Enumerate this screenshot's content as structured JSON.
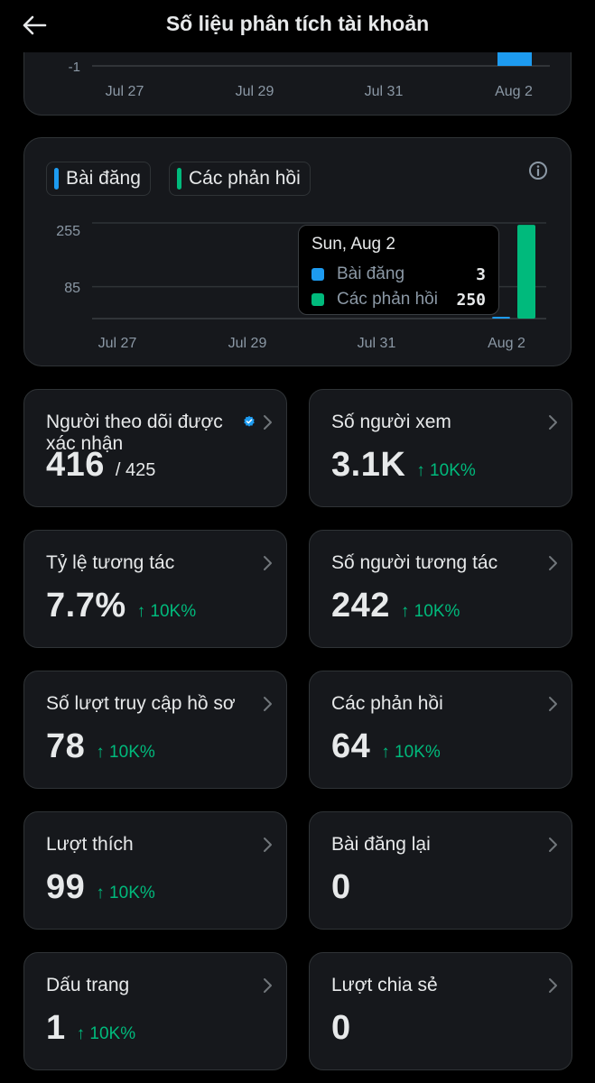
{
  "header": {
    "title": "Số liệu phân tích tài khoản",
    "back_icon": "arrow-left-icon"
  },
  "colors": {
    "posts": "#1d9bf0",
    "replies": "#00ba7c",
    "positive": "#00ba7c",
    "card_bg": "#16181c",
    "border": "#2f3336"
  },
  "top_chart": {
    "y_tick": "-1",
    "x_ticks": [
      "Jul 27",
      "Jul 29",
      "Jul 31",
      "Aug 2"
    ]
  },
  "main_chart": {
    "legend": {
      "posts": "Bài đăng",
      "replies": "Các phản hồi"
    },
    "info_icon": "info-icon",
    "y_ticks": [
      "255",
      "85"
    ],
    "x_ticks": [
      "Jul 27",
      "Jul 29",
      "Jul 31",
      "Aug 2"
    ],
    "tooltip": {
      "date": "Sun, Aug 2",
      "posts_label": "Bài đăng",
      "posts_value": "3",
      "replies_label": "Các phản hồi",
      "replies_value": "250"
    }
  },
  "chart_data": {
    "type": "bar",
    "categories": [
      "Aug 2"
    ],
    "series": [
      {
        "name": "Bài đăng",
        "values": [
          3
        ]
      },
      {
        "name": "Các phản hồi",
        "values": [
          250
        ]
      }
    ],
    "x_ticks": [
      "Jul 27",
      "Jul 29",
      "Jul 31",
      "Aug 2"
    ],
    "y_ticks": [
      255,
      85
    ],
    "ylim": [
      0,
      255
    ]
  },
  "stats": [
    {
      "label": "Người theo dõi được xác nhận",
      "value": "416",
      "of": "/ 425",
      "change": "",
      "verified": true
    },
    {
      "label": "Số người xem",
      "value": "3.1K",
      "of": "",
      "change": "↑ 10K%"
    },
    {
      "label": "Tỷ lệ tương tác",
      "value": "7.7%",
      "of": "",
      "change": "↑ 10K%"
    },
    {
      "label": "Số người tương tác",
      "value": "242",
      "of": "",
      "change": "↑ 10K%"
    },
    {
      "label": "Số lượt truy cập hồ sơ",
      "value": "78",
      "of": "",
      "change": "↑ 10K%"
    },
    {
      "label": "Các phản hồi",
      "value": "64",
      "of": "",
      "change": "↑ 10K%"
    },
    {
      "label": "Lượt thích",
      "value": "99",
      "of": "",
      "change": "↑ 10K%"
    },
    {
      "label": "Bài đăng lại",
      "value": "0",
      "of": "",
      "change": ""
    },
    {
      "label": "Dấu trang",
      "value": "1",
      "of": "",
      "change": "↑ 10K%"
    },
    {
      "label": "Lượt chia sẻ",
      "value": "0",
      "of": "",
      "change": ""
    }
  ]
}
